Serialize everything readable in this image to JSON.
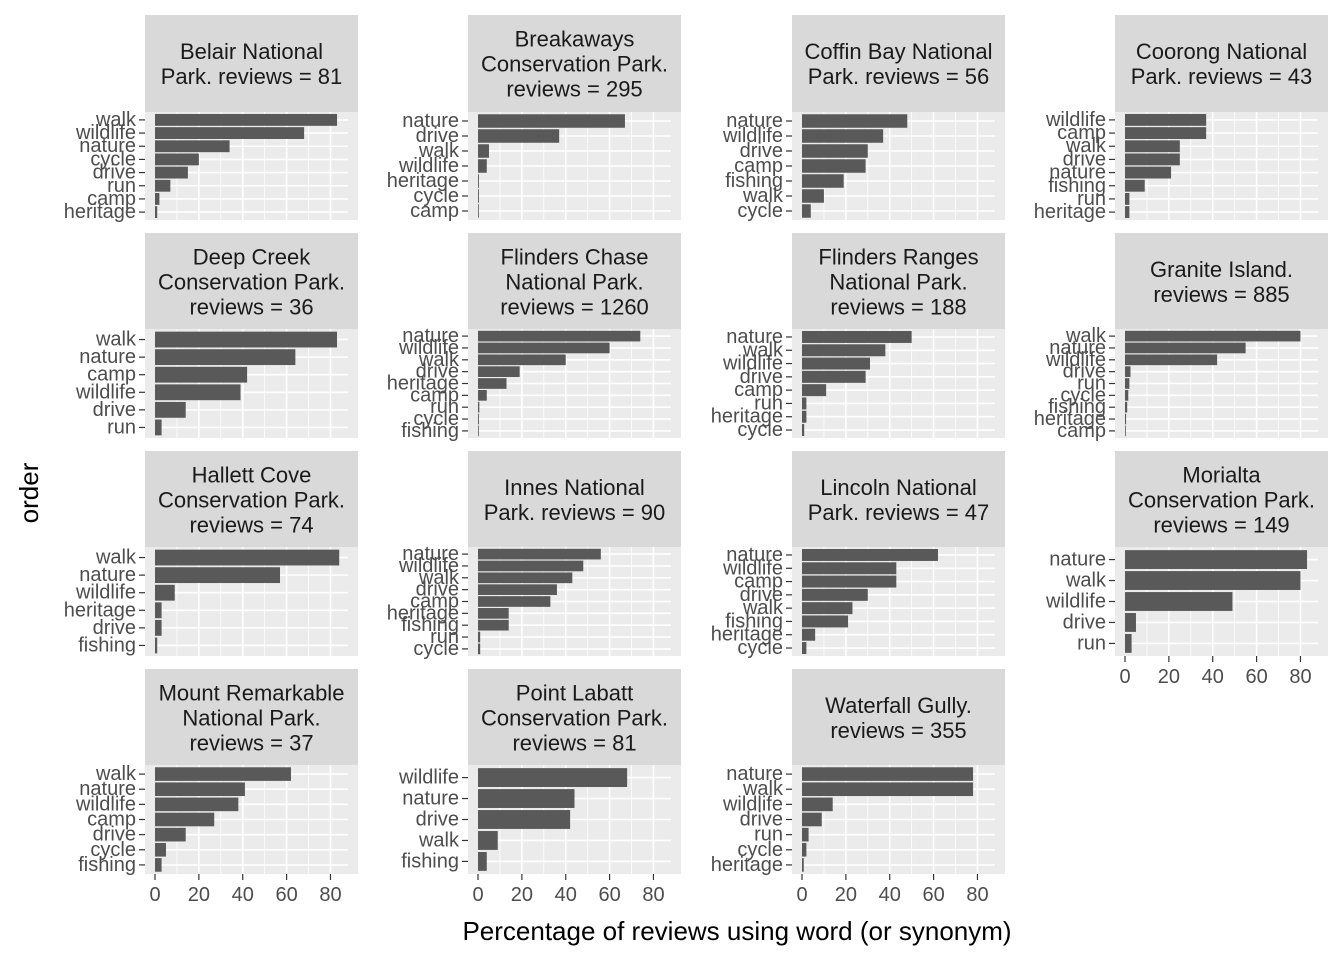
{
  "chart_data": {
    "type": "bar",
    "orientation": "horizontal",
    "layout": "facet-wrap 4 columns, free y scales",
    "xlabel": "Percentage of reviews using word (or synonym)",
    "ylabel": "order",
    "xlim": [
      0,
      88
    ],
    "x_ticks": [
      0,
      20,
      40,
      60,
      80
    ],
    "grid": true,
    "colors": {
      "bar": "#595959",
      "panel_bg": "#ebebeb",
      "strip_bg": "#d9d9d9",
      "grid": "#ffffff"
    },
    "facets": [
      {
        "title": [
          "Belair National",
          "Park. reviews = 81"
        ],
        "categories": [
          "walk",
          "wildlife",
          "nature",
          "cycle",
          "drive",
          "run",
          "camp",
          "heritage"
        ],
        "values": [
          83,
          68,
          34,
          20,
          15,
          7,
          2,
          1
        ]
      },
      {
        "title": [
          "Breakaways",
          "Conservation Park.",
          "reviews = 295"
        ],
        "categories": [
          "nature",
          "drive",
          "walk",
          "wildlife",
          "heritage",
          "cycle",
          "camp"
        ],
        "values": [
          67,
          37,
          5,
          4,
          0.4,
          0.4,
          0.3
        ]
      },
      {
        "title": [
          "Coffin Bay National",
          "Park. reviews = 56"
        ],
        "categories": [
          "nature",
          "wildlife",
          "drive",
          "camp",
          "fishing",
          "walk",
          "cycle"
        ],
        "values": [
          48,
          37,
          30,
          29,
          19,
          10,
          4
        ]
      },
      {
        "title": [
          "Coorong National",
          "Park. reviews = 43"
        ],
        "categories": [
          "wildlife",
          "camp",
          "walk",
          "drive",
          "nature",
          "fishing",
          "run",
          "heritage"
        ],
        "values": [
          37,
          37,
          25,
          25,
          21,
          9,
          2,
          2
        ]
      },
      {
        "title": [
          "Deep Creek",
          "Conservation Park.",
          "reviews = 36"
        ],
        "categories": [
          "walk",
          "nature",
          "camp",
          "wildlife",
          "drive",
          "run"
        ],
        "values": [
          83,
          64,
          42,
          39,
          14,
          3
        ]
      },
      {
        "title": [
          "Flinders Chase",
          "National Park.",
          "reviews = 1260"
        ],
        "categories": [
          "nature",
          "wildlife",
          "walk",
          "drive",
          "heritage",
          "camp",
          "run",
          "cycle",
          "fishing"
        ],
        "values": [
          74,
          60,
          40,
          19,
          13,
          4,
          0.6,
          0.4,
          0.2
        ]
      },
      {
        "title": [
          "Flinders Ranges",
          "National Park.",
          "reviews = 188"
        ],
        "categories": [
          "nature",
          "walk",
          "wildlife",
          "drive",
          "camp",
          "run",
          "heritage",
          "cycle"
        ],
        "values": [
          50,
          38,
          31,
          29,
          11,
          2,
          2,
          1
        ]
      },
      {
        "title": [
          "Granite Island.",
          "reviews = 885"
        ],
        "categories": [
          "walk",
          "nature",
          "wildlife",
          "drive",
          "run",
          "cycle",
          "fishing",
          "heritage",
          "camp"
        ],
        "values": [
          80,
          55,
          42,
          2.5,
          2,
          1.5,
          1,
          0.5,
          0.3
        ]
      },
      {
        "title": [
          "Hallett Cove",
          "Conservation Park.",
          "reviews = 74"
        ],
        "categories": [
          "walk",
          "nature",
          "wildlife",
          "heritage",
          "drive",
          "fishing"
        ],
        "values": [
          84,
          57,
          9,
          3,
          3,
          1
        ]
      },
      {
        "title": [
          "Innes National",
          "Park. reviews = 90"
        ],
        "categories": [
          "nature",
          "wildlife",
          "walk",
          "drive",
          "camp",
          "heritage",
          "fishing",
          "run",
          "cycle"
        ],
        "values": [
          56,
          48,
          43,
          36,
          33,
          14,
          14,
          1,
          1
        ]
      },
      {
        "title": [
          "Lincoln National",
          "Park. reviews = 47"
        ],
        "categories": [
          "nature",
          "wildlife",
          "camp",
          "drive",
          "walk",
          "fishing",
          "heritage",
          "cycle"
        ],
        "values": [
          62,
          43,
          43,
          30,
          23,
          21,
          6,
          2
        ]
      },
      {
        "title": [
          "Morialta",
          "Conservation Park.",
          "reviews = 149"
        ],
        "categories": [
          "nature",
          "walk",
          "wildlife",
          "drive",
          "run"
        ],
        "values": [
          83,
          80,
          49,
          5,
          3
        ]
      },
      {
        "title": [
          "Mount Remarkable",
          "National Park.",
          "reviews = 37"
        ],
        "categories": [
          "walk",
          "nature",
          "wildlife",
          "camp",
          "drive",
          "cycle",
          "fishing"
        ],
        "values": [
          62,
          41,
          38,
          27,
          14,
          5,
          3
        ]
      },
      {
        "title": [
          "Point Labatt",
          "Conservation Park.",
          "reviews = 81"
        ],
        "categories": [
          "wildlife",
          "nature",
          "drive",
          "walk",
          "fishing"
        ],
        "values": [
          68,
          44,
          42,
          9,
          4
        ]
      },
      {
        "title": [
          "Waterfall Gully.",
          "reviews = 355"
        ],
        "categories": [
          "nature",
          "walk",
          "wildlife",
          "drive",
          "run",
          "cycle",
          "heritage"
        ],
        "values": [
          78,
          78,
          14,
          9,
          3,
          2,
          0.8
        ]
      }
    ]
  }
}
